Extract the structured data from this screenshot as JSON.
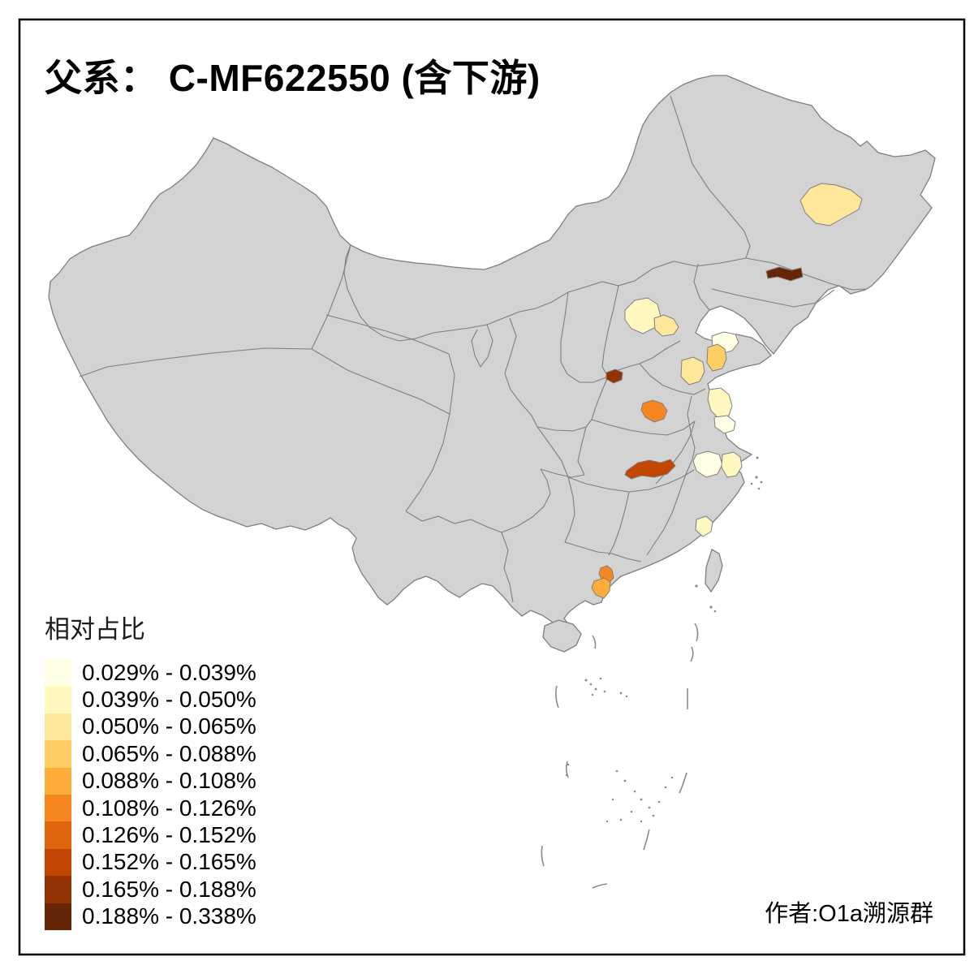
{
  "title": "父系： C-MF622550 (含下游)",
  "credit": "作者:O1a溯源群",
  "legend": {
    "title": "相对占比",
    "bins": [
      {
        "label": "0.029% - 0.039%",
        "color": "#FFFFE5"
      },
      {
        "label": "0.039% - 0.050%",
        "color": "#FFF8C1"
      },
      {
        "label": "0.050% - 0.065%",
        "color": "#FEE79B"
      },
      {
        "label": "0.065% - 0.088%",
        "color": "#FECE65"
      },
      {
        "label": "0.088% - 0.108%",
        "color": "#FEAC3A"
      },
      {
        "label": "0.108% - 0.126%",
        "color": "#F68720"
      },
      {
        "label": "0.126% - 0.152%",
        "color": "#E1640E"
      },
      {
        "label": "0.152% - 0.165%",
        "color": "#C14702"
      },
      {
        "label": "0.165% - 0.188%",
        "color": "#933204"
      },
      {
        "label": "0.188% - 0.338%",
        "color": "#662506"
      }
    ]
  },
  "map": {
    "land_color": "#D3D3D3",
    "border_color": "#7F7F7F",
    "frame_color": "#000000",
    "background": "#FFFFFF",
    "highlighted_regions": [
      {
        "region": "heilongjiang-suihua",
        "bin": 2
      },
      {
        "region": "jilin-central",
        "bin": 9
      },
      {
        "region": "beijing",
        "bin": 1
      },
      {
        "region": "tianjin-langfang",
        "bin": 2
      },
      {
        "region": "shandong-north-coast",
        "bin": 0
      },
      {
        "region": "shandong-qingdao",
        "bin": 3
      },
      {
        "region": "shandong-central",
        "bin": 2
      },
      {
        "region": "henan-west",
        "bin": 8
      },
      {
        "region": "henan-central",
        "bin": 5
      },
      {
        "region": "jiangsu-north",
        "bin": 1
      },
      {
        "region": "jiangsu-coastal",
        "bin": 0
      },
      {
        "region": "jiangsu-south",
        "bin": 0
      },
      {
        "region": "zhejiang-north",
        "bin": 1
      },
      {
        "region": "fujian-fuzhou",
        "bin": 1
      },
      {
        "region": "hubei-central",
        "bin": 7
      },
      {
        "region": "guangdong-guangzhou",
        "bin": 5
      },
      {
        "region": "guangdong-jiangmen",
        "bin": 4
      }
    ]
  }
}
